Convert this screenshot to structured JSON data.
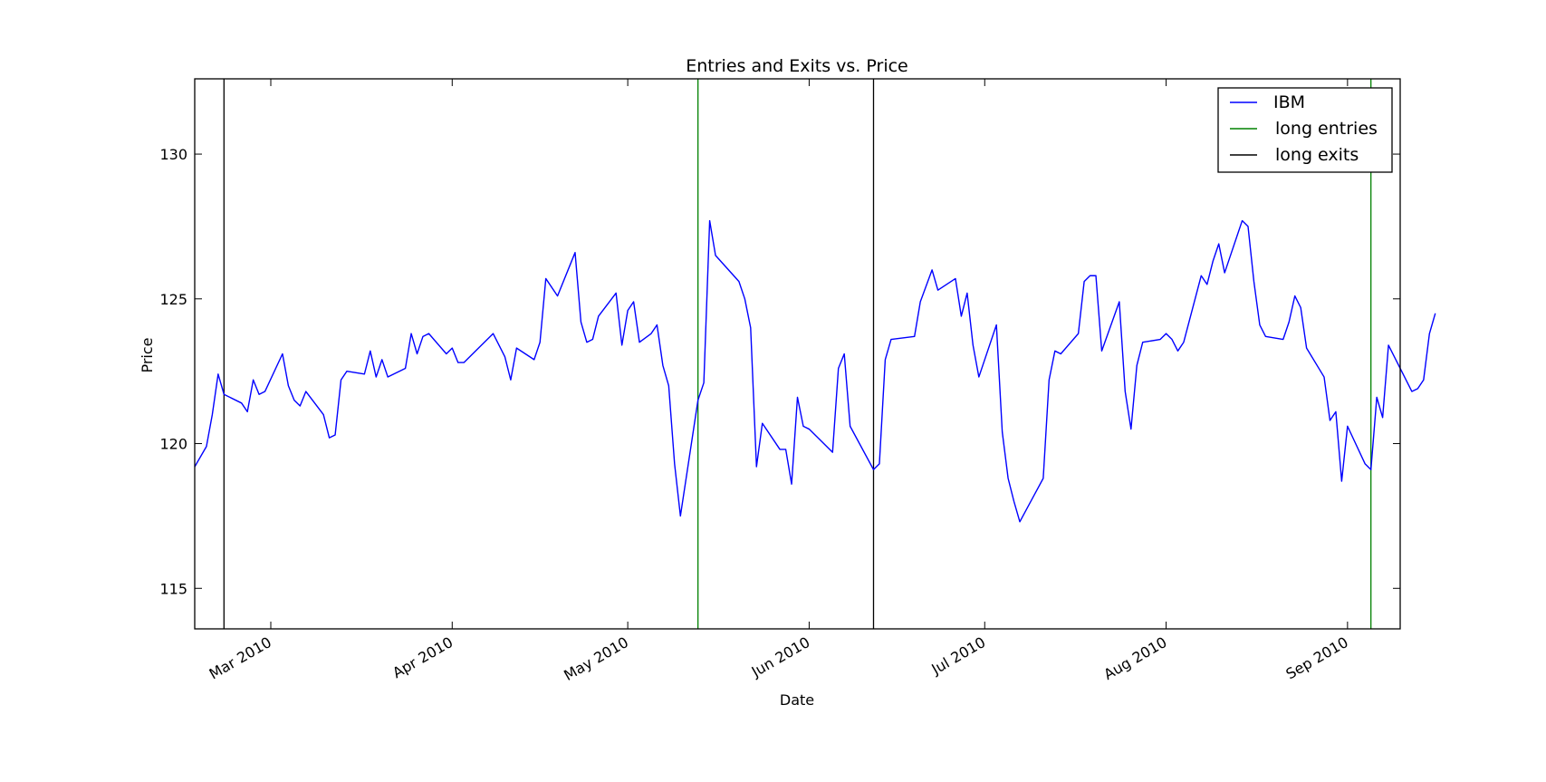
{
  "chart_data": {
    "type": "line",
    "title": "Entries and Exits vs. Price",
    "xlabel": "Date",
    "ylabel": "Price",
    "xlim": [
      "2010-02-16",
      "2010-09-10"
    ],
    "ylim": [
      113.6,
      132.6
    ],
    "x_ticks": [
      {
        "date": "2010-03-01",
        "label": "Mar 2010"
      },
      {
        "date": "2010-04-01",
        "label": "Apr 2010"
      },
      {
        "date": "2010-05-01",
        "label": "May 2010"
      },
      {
        "date": "2010-06-01",
        "label": "Jun 2010"
      },
      {
        "date": "2010-07-01",
        "label": "Jul 2010"
      },
      {
        "date": "2010-08-01",
        "label": "Aug 2010"
      },
      {
        "date": "2010-09-01",
        "label": "Sep 2010"
      }
    ],
    "y_ticks": [
      115,
      120,
      125,
      130
    ],
    "grid": false,
    "legend_position": "top-right",
    "series": [
      {
        "name": "IBM",
        "color": "#0000ff",
        "points": [
          [
            "2010-02-16",
            119.2
          ],
          [
            "2010-02-18",
            119.9
          ],
          [
            "2010-02-19",
            121.0
          ],
          [
            "2010-02-20",
            122.4
          ],
          [
            "2010-02-21",
            121.7
          ],
          [
            "2010-02-24",
            121.4
          ],
          [
            "2010-02-25",
            121.1
          ],
          [
            "2010-02-26",
            122.2
          ],
          [
            "2010-02-27",
            121.7
          ],
          [
            "2010-02-28",
            121.8
          ],
          [
            "2010-03-03",
            123.1
          ],
          [
            "2010-03-04",
            122.0
          ],
          [
            "2010-03-05",
            121.5
          ],
          [
            "2010-03-06",
            121.3
          ],
          [
            "2010-03-07",
            121.8
          ],
          [
            "2010-03-10",
            121.0
          ],
          [
            "2010-03-11",
            120.2
          ],
          [
            "2010-03-12",
            120.3
          ],
          [
            "2010-03-13",
            122.2
          ],
          [
            "2010-03-14",
            122.5
          ],
          [
            "2010-03-17",
            122.4
          ],
          [
            "2010-03-18",
            123.2
          ],
          [
            "2010-03-19",
            122.3
          ],
          [
            "2010-03-20",
            122.9
          ],
          [
            "2010-03-21",
            122.3
          ],
          [
            "2010-03-24",
            122.6
          ],
          [
            "2010-03-25",
            123.8
          ],
          [
            "2010-03-26",
            123.1
          ],
          [
            "2010-03-27",
            123.7
          ],
          [
            "2010-03-28",
            123.8
          ],
          [
            "2010-03-31",
            123.1
          ],
          [
            "2010-04-01",
            123.3
          ],
          [
            "2010-04-02",
            122.8
          ],
          [
            "2010-04-03",
            122.8
          ],
          [
            "2010-04-08",
            123.8
          ],
          [
            "2010-04-10",
            123.0
          ],
          [
            "2010-04-11",
            122.2
          ],
          [
            "2010-04-12",
            123.3
          ],
          [
            "2010-04-15",
            122.9
          ],
          [
            "2010-04-16",
            123.5
          ],
          [
            "2010-04-17",
            125.7
          ],
          [
            "2010-04-19",
            125.1
          ],
          [
            "2010-04-22",
            126.6
          ],
          [
            "2010-04-23",
            124.2
          ],
          [
            "2010-04-24",
            123.5
          ],
          [
            "2010-04-25",
            123.6
          ],
          [
            "2010-04-26",
            124.4
          ],
          [
            "2010-04-29",
            125.2
          ],
          [
            "2010-04-30",
            123.4
          ],
          [
            "2010-05-01",
            124.6
          ],
          [
            "2010-05-02",
            124.9
          ],
          [
            "2010-05-03",
            123.5
          ],
          [
            "2010-05-05",
            123.8
          ],
          [
            "2010-05-06",
            124.1
          ],
          [
            "2010-05-07",
            122.7
          ],
          [
            "2010-05-08",
            122.0
          ],
          [
            "2010-05-09",
            119.3
          ],
          [
            "2010-05-10",
            117.5
          ],
          [
            "2010-05-13",
            121.5
          ],
          [
            "2010-05-14",
            122.1
          ],
          [
            "2010-05-15",
            127.7
          ],
          [
            "2010-05-16",
            126.5
          ],
          [
            "2010-05-20",
            125.6
          ],
          [
            "2010-05-21",
            125.0
          ],
          [
            "2010-05-22",
            124.0
          ],
          [
            "2010-05-23",
            119.2
          ],
          [
            "2010-05-24",
            120.7
          ],
          [
            "2010-05-27",
            119.8
          ],
          [
            "2010-05-28",
            119.8
          ],
          [
            "2010-05-29",
            118.6
          ],
          [
            "2010-05-30",
            121.6
          ],
          [
            "2010-05-31",
            120.6
          ],
          [
            "2010-06-01",
            120.5
          ],
          [
            "2010-06-01",
            120.5
          ],
          [
            "2010-06-05",
            119.7
          ],
          [
            "2010-06-06",
            122.6
          ],
          [
            "2010-06-07",
            123.1
          ],
          [
            "2010-06-08",
            120.6
          ],
          [
            "2010-06-12",
            119.1
          ],
          [
            "2010-06-13",
            119.3
          ],
          [
            "2010-06-14",
            122.9
          ],
          [
            "2010-06-15",
            123.6
          ],
          [
            "2010-06-19",
            123.7
          ],
          [
            "2010-06-20",
            124.9
          ],
          [
            "2010-06-22",
            126.0
          ],
          [
            "2010-06-23",
            125.3
          ],
          [
            "2010-06-26",
            125.7
          ],
          [
            "2010-06-27",
            124.4
          ],
          [
            "2010-06-28",
            125.2
          ],
          [
            "2010-06-29",
            123.4
          ],
          [
            "2010-06-30",
            122.3
          ],
          [
            "2010-07-03",
            124.1
          ],
          [
            "2010-07-04",
            120.4
          ],
          [
            "2010-07-05",
            118.8
          ],
          [
            "2010-07-06",
            118.0
          ],
          [
            "2010-07-07",
            117.3
          ],
          [
            "2010-07-11",
            118.8
          ],
          [
            "2010-07-12",
            122.2
          ],
          [
            "2010-07-13",
            123.2
          ],
          [
            "2010-07-14",
            123.1
          ],
          [
            "2010-07-17",
            123.8
          ],
          [
            "2010-07-18",
            125.6
          ],
          [
            "2010-07-19",
            125.8
          ],
          [
            "2010-07-20",
            125.8
          ],
          [
            "2010-07-21",
            123.2
          ],
          [
            "2010-07-24",
            124.9
          ],
          [
            "2010-07-25",
            121.8
          ],
          [
            "2010-07-26",
            120.5
          ],
          [
            "2010-07-27",
            122.7
          ],
          [
            "2010-07-28",
            123.5
          ],
          [
            "2010-07-31",
            123.6
          ],
          [
            "2010-08-01",
            123.8
          ],
          [
            "2010-08-02",
            123.6
          ],
          [
            "2010-08-03",
            123.2
          ],
          [
            "2010-08-04",
            123.5
          ],
          [
            "2010-08-07",
            125.8
          ],
          [
            "2010-08-08",
            125.5
          ],
          [
            "2010-08-09",
            126.3
          ],
          [
            "2010-08-10",
            126.9
          ],
          [
            "2010-08-11",
            125.9
          ],
          [
            "2010-08-14",
            127.7
          ],
          [
            "2010-08-15",
            127.5
          ],
          [
            "2010-08-16",
            125.6
          ],
          [
            "2010-08-17",
            124.1
          ],
          [
            "2010-08-18",
            123.7
          ],
          [
            "2010-08-21",
            123.6
          ],
          [
            "2010-08-22",
            124.2
          ],
          [
            "2010-08-23",
            125.1
          ],
          [
            "2010-08-24",
            124.7
          ],
          [
            "2010-08-25",
            123.3
          ],
          [
            "2010-08-28",
            122.3
          ],
          [
            "2010-08-29",
            120.8
          ],
          [
            "2010-08-30",
            121.1
          ],
          [
            "2010-08-31",
            118.7
          ],
          [
            "2010-09-01",
            120.6
          ],
          [
            "2010-09-04",
            119.3
          ],
          [
            "2010-09-05",
            119.1
          ],
          [
            "2010-09-06",
            121.6
          ],
          [
            "2010-09-07",
            120.9
          ],
          [
            "2010-09-08",
            123.4
          ],
          [
            "2010-09-12",
            121.8
          ],
          [
            "2010-09-13",
            121.9
          ],
          [
            "2010-09-14",
            122.2
          ],
          [
            "2010-09-15",
            123.8
          ],
          [
            "2010-09-16",
            124.5
          ]
        ]
      },
      {
        "name": "long entries",
        "color": "#008000",
        "vlines": [
          "2010-05-13",
          "2010-09-05"
        ]
      },
      {
        "name": "long exits",
        "color": "#000000",
        "vlines": [
          "2010-02-21",
          "2010-06-12"
        ]
      }
    ]
  }
}
